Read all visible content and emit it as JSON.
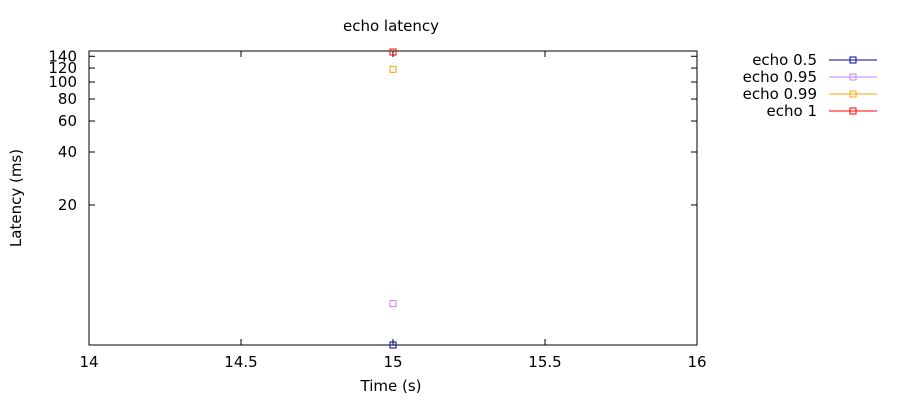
{
  "chart_data": {
    "type": "scatter",
    "title": "echo latency",
    "xlabel": "Time (s)",
    "ylabel": "Latency (ms)",
    "xlim": [
      14,
      16
    ],
    "ylim": [
      3.2,
      150
    ],
    "yscale": "log",
    "xticks": [
      "14",
      "14.5",
      "15",
      "15.5",
      "16"
    ],
    "yticks": [
      "20",
      "40",
      "60",
      "80",
      "100",
      "120",
      "140"
    ],
    "grid": false,
    "legend_position": "outside-right",
    "series": [
      {
        "name": "echo 0.5",
        "color": "#0000a0",
        "marker": "open-square",
        "points": [
          {
            "x": 15,
            "y": 3.2
          }
        ]
      },
      {
        "name": "echo 0.95",
        "color": "#c080ff",
        "marker": "open-square",
        "points": [
          {
            "x": 15,
            "y": 5.5
          }
        ]
      },
      {
        "name": "echo 0.99",
        "color": "#ffa000",
        "marker": "open-square",
        "points": [
          {
            "x": 15,
            "y": 118
          }
        ]
      },
      {
        "name": "echo 1",
        "color": "#ff0000",
        "marker": "open-square",
        "points": [
          {
            "x": 15,
            "y": 148
          }
        ]
      }
    ]
  }
}
